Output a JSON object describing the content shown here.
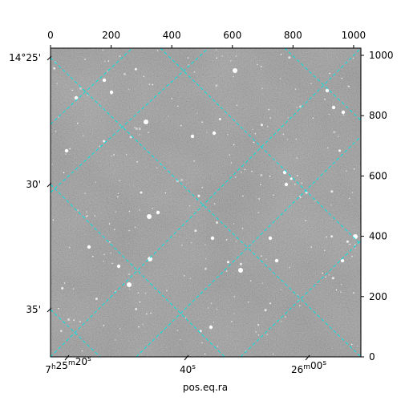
{
  "chart_data": {
    "type": "image",
    "title": "",
    "xlabel": "pos.eq.ra",
    "ylabel": "",
    "pixel_axes": {
      "x": {
        "range": [
          0,
          1024
        ],
        "ticks": [
          0,
          200,
          400,
          600,
          800,
          1000
        ],
        "position": "top"
      },
      "y": {
        "range": [
          0,
          1024
        ],
        "ticks": [
          0,
          200,
          400,
          600,
          800,
          1000
        ],
        "position": "right"
      }
    },
    "world_axes": {
      "ra": {
        "position": "bottom",
        "tick_labels": [
          "7h25m20s",
          "40s",
          "26m00s"
        ]
      },
      "dec": {
        "position": "left",
        "tick_labels": [
          "14°25'",
          "30'",
          "35'"
        ]
      }
    },
    "grid": true,
    "grid_color": "#00e5e5",
    "colormap": "gray",
    "background_level": "#6a6a6a"
  }
}
